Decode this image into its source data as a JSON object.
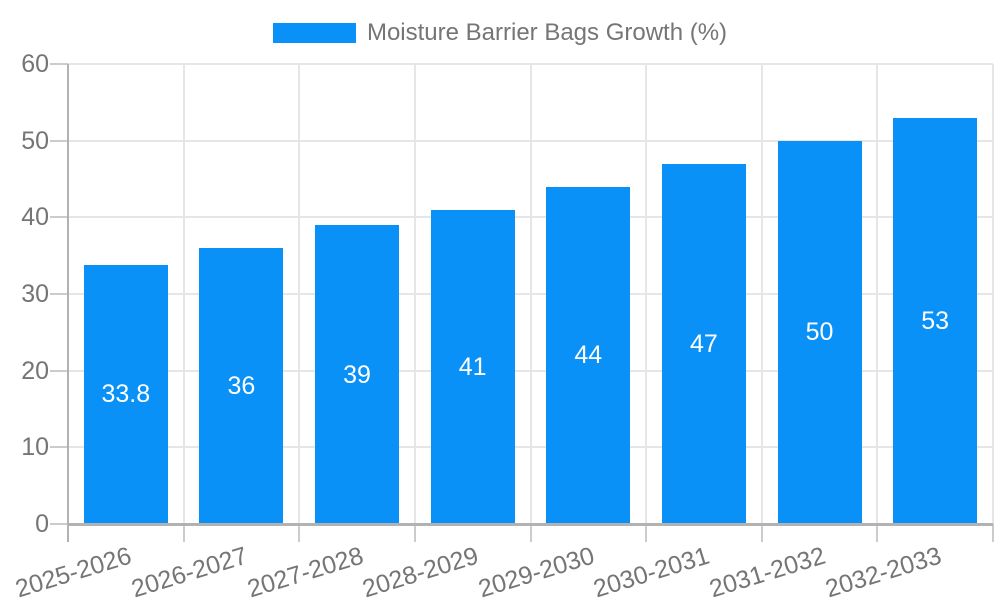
{
  "chart_data": {
    "type": "bar",
    "title": "",
    "legend": "Moisture Barrier Bags Growth (%)",
    "legend_position": "top",
    "categories": [
      "2025-2026",
      "2026-2027",
      "2027-2028",
      "2028-2029",
      "2029-2030",
      "2030-2031",
      "2031-2032",
      "2032-2033"
    ],
    "values": [
      33.8,
      36,
      39,
      41,
      44,
      47,
      50,
      53
    ],
    "value_labels": [
      "33.8",
      "36",
      "39",
      "41",
      "44",
      "47",
      "50",
      "53"
    ],
    "xlabel": "",
    "ylabel": "",
    "ylim": [
      0,
      60
    ],
    "yticks": [
      0,
      10,
      20,
      30,
      40,
      50,
      60
    ],
    "grid": true,
    "colors": {
      "bar": "#0991f7",
      "tick_label": "#757575",
      "annotation": "#ffffff",
      "gridline": "#e6e6e6",
      "tick_mark": "#cccccc",
      "axis_line": "#b2b2b2",
      "background": "#ffffff"
    }
  }
}
